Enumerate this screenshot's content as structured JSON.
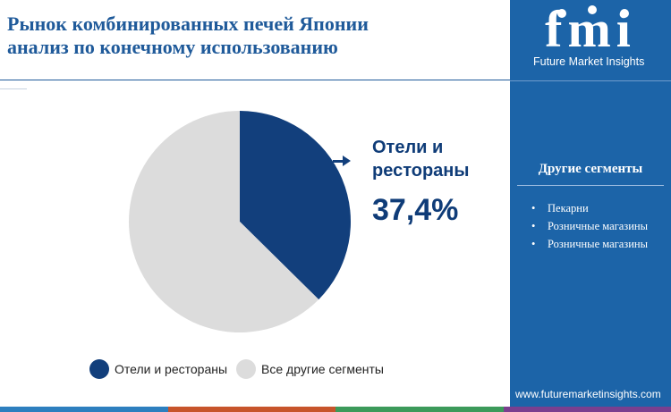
{
  "header": {
    "title_line1": "Рынок комбинированных печей Японии",
    "title_line2": "анализ по конечному использованию"
  },
  "chart_data": {
    "type": "pie",
    "categories": [
      "Отели и рестораны",
      "Все другие сегменты"
    ],
    "values": [
      37.4,
      62.6
    ],
    "colors": [
      "#123f7c",
      "#dcdcdc"
    ],
    "start": "12 o'clock, clockwise",
    "callout": {
      "label": "Отели и рестораны",
      "value": "37,4%"
    },
    "legend": {
      "position": "bottom",
      "items": [
        {
          "label": "Отели и рестораны",
          "color": "#123f7c"
        },
        {
          "label": "Все другие сегменты",
          "color": "#dcdcdc"
        }
      ]
    }
  },
  "sidebar": {
    "logo_text": "fmi",
    "logo_subtitle": "Future Market Insights",
    "segments_title": "Другие сегменты",
    "segments": [
      "Пекарни",
      "Розничные магазины",
      "Розничные магазины"
    ],
    "website": "www.futuremarketinsights.com"
  },
  "bottom_bar_colors": [
    "#2d7fbf",
    "#c7542b",
    "#3c9a5a",
    "#7a3f8f"
  ]
}
